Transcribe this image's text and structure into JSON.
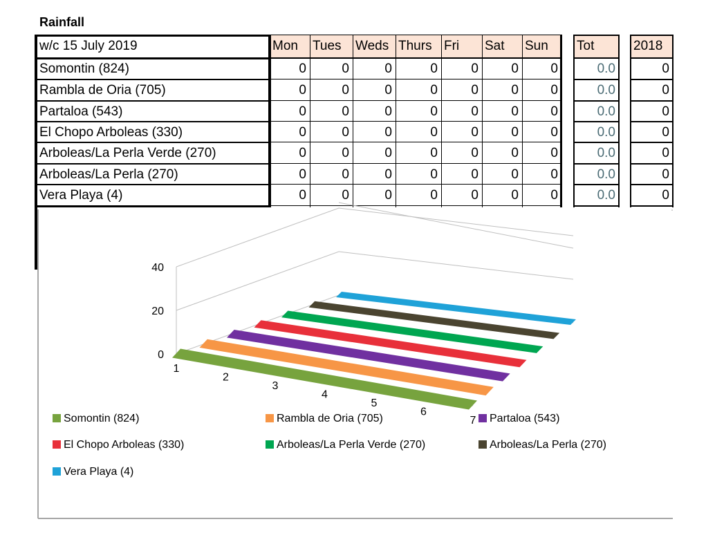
{
  "title": "Rainfall",
  "table": {
    "week_label": "w/c 15 July 2019",
    "day_headers": [
      "Mon",
      "Tues",
      "Weds",
      "Thurs",
      "Fri",
      "Sat",
      "Sun"
    ],
    "tot_header": "Tot",
    "year_header": "2018",
    "rows": [
      {
        "station": "Somontin (824)",
        "values": [
          "0",
          "0",
          "0",
          "0",
          "0",
          "0",
          "0"
        ],
        "tot": "0.0",
        "prev": "0"
      },
      {
        "station": "Rambla de Oria (705)",
        "values": [
          "0",
          "0",
          "0",
          "0",
          "0",
          "0",
          "0"
        ],
        "tot": "0.0",
        "prev": "0"
      },
      {
        "station": "Partaloa (543)",
        "values": [
          "0",
          "0",
          "0",
          "0",
          "0",
          "0",
          "0"
        ],
        "tot": "0.0",
        "prev": "0"
      },
      {
        "station": "El Chopo Arboleas (330)",
        "values": [
          "0",
          "0",
          "0",
          "0",
          "0",
          "0",
          "0"
        ],
        "tot": "0.0",
        "prev": "0"
      },
      {
        "station": "Arboleas/La Perla Verde (270)",
        "values": [
          "0",
          "0",
          "0",
          "0",
          "0",
          "0",
          "0"
        ],
        "tot": "0.0",
        "prev": "0"
      },
      {
        "station": "Arboleas/La Perla (270)",
        "values": [
          "0",
          "0",
          "0",
          "0",
          "0",
          "0",
          "0"
        ],
        "tot": "0.0",
        "prev": "0"
      },
      {
        "station": "Vera Playa (4)",
        "values": [
          "0",
          "0",
          "0",
          "0",
          "0",
          "0",
          "0"
        ],
        "tot": "0.0",
        "prev": "0"
      }
    ]
  },
  "chart_data": {
    "type": "line",
    "style": "3d",
    "x": [
      1,
      2,
      3,
      4,
      5,
      6,
      7
    ],
    "ylim": [
      0,
      40
    ],
    "yticks": [
      0,
      20,
      40
    ],
    "xticks": [
      "1",
      "2",
      "3",
      "4",
      "5",
      "6",
      "7"
    ],
    "grid": true,
    "legend_position": "bottom",
    "series": [
      {
        "name": "Somontin (824)",
        "color": "#77a33e",
        "values": [
          0,
          0,
          0,
          0,
          0,
          0,
          0
        ]
      },
      {
        "name": "Rambla de Oria (705)",
        "color": "#f79646",
        "values": [
          0,
          0,
          0,
          0,
          0,
          0,
          0
        ]
      },
      {
        "name": "Partaloa (543)",
        "color": "#7030a0",
        "values": [
          0,
          0,
          0,
          0,
          0,
          0,
          0
        ]
      },
      {
        "name": "El Chopo Arboleas (330)",
        "color": "#e8303a",
        "values": [
          0,
          0,
          0,
          0,
          0,
          0,
          0
        ]
      },
      {
        "name": "Arboleas/La Perla Verde (270)",
        "color": "#00a651",
        "values": [
          0,
          0,
          0,
          0,
          0,
          0,
          0
        ]
      },
      {
        "name": "Arboleas/La Perla (270)",
        "color": "#4a4430",
        "values": [
          0,
          0,
          0,
          0,
          0,
          0,
          0
        ]
      },
      {
        "name": "Vera Playa (4)",
        "color": "#1fa2d8",
        "values": [
          0,
          0,
          0,
          0,
          0,
          0,
          0
        ]
      }
    ]
  }
}
